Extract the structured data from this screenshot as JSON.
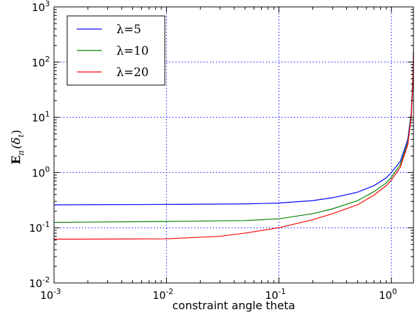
{
  "chart_data": {
    "type": "line",
    "xlabel": "constraint angle theta",
    "ylabel_parts": {
      "main": "E",
      "sub1": "π",
      "arg": "(δ",
      "sub2": "t",
      "close": ")"
    },
    "xscale": "log",
    "yscale": "log",
    "xlim": [
      0.001,
      1.5708
    ],
    "ylim": [
      0.01,
      1000
    ],
    "grid": true,
    "legend_position": "top-left",
    "x_ticks": [
      {
        "base": "10",
        "exp": "-3",
        "value": 0.001
      },
      {
        "base": "10",
        "exp": "-2",
        "value": 0.01
      },
      {
        "base": "10",
        "exp": "-1",
        "value": 0.1
      },
      {
        "base": "10",
        "exp": "0",
        "value": 1
      }
    ],
    "y_ticks": [
      {
        "base": "10",
        "exp": "-2",
        "value": 0.01
      },
      {
        "base": "10",
        "exp": "-1",
        "value": 0.1
      },
      {
        "base": "10",
        "exp": "0",
        "value": 1
      },
      {
        "base": "10",
        "exp": "1",
        "value": 10
      },
      {
        "base": "10",
        "exp": "2",
        "value": 100
      },
      {
        "base": "10",
        "exp": "3",
        "value": 1000
      }
    ],
    "series": [
      {
        "name": "λ=5",
        "color": "#0000ff",
        "x": [
          0.001,
          0.01,
          0.05,
          0.1,
          0.2,
          0.3,
          0.5,
          0.7,
          0.9,
          1.0,
          1.2,
          1.4,
          1.5,
          1.55,
          1.5708
        ],
        "y": [
          0.26,
          0.265,
          0.27,
          0.28,
          0.31,
          0.35,
          0.44,
          0.58,
          0.8,
          1.0,
          1.6,
          4.0,
          12,
          50,
          150
        ]
      },
      {
        "name": "λ=10",
        "color": "#008000",
        "x": [
          0.001,
          0.01,
          0.05,
          0.1,
          0.2,
          0.3,
          0.5,
          0.7,
          0.9,
          1.0,
          1.2,
          1.4,
          1.5,
          1.55,
          1.5708
        ],
        "y": [
          0.125,
          0.13,
          0.135,
          0.145,
          0.18,
          0.22,
          0.31,
          0.45,
          0.65,
          0.82,
          1.4,
          3.5,
          11,
          45,
          150
        ]
      },
      {
        "name": "λ=20",
        "color": "#ff0000",
        "x": [
          0.001,
          0.01,
          0.03,
          0.05,
          0.1,
          0.2,
          0.3,
          0.5,
          0.7,
          0.9,
          1.0,
          1.2,
          1.4,
          1.5,
          1.55,
          1.5708
        ],
        "y": [
          0.062,
          0.063,
          0.07,
          0.08,
          0.1,
          0.14,
          0.18,
          0.26,
          0.39,
          0.58,
          0.73,
          1.25,
          3.2,
          10,
          40,
          150
        ]
      }
    ]
  }
}
